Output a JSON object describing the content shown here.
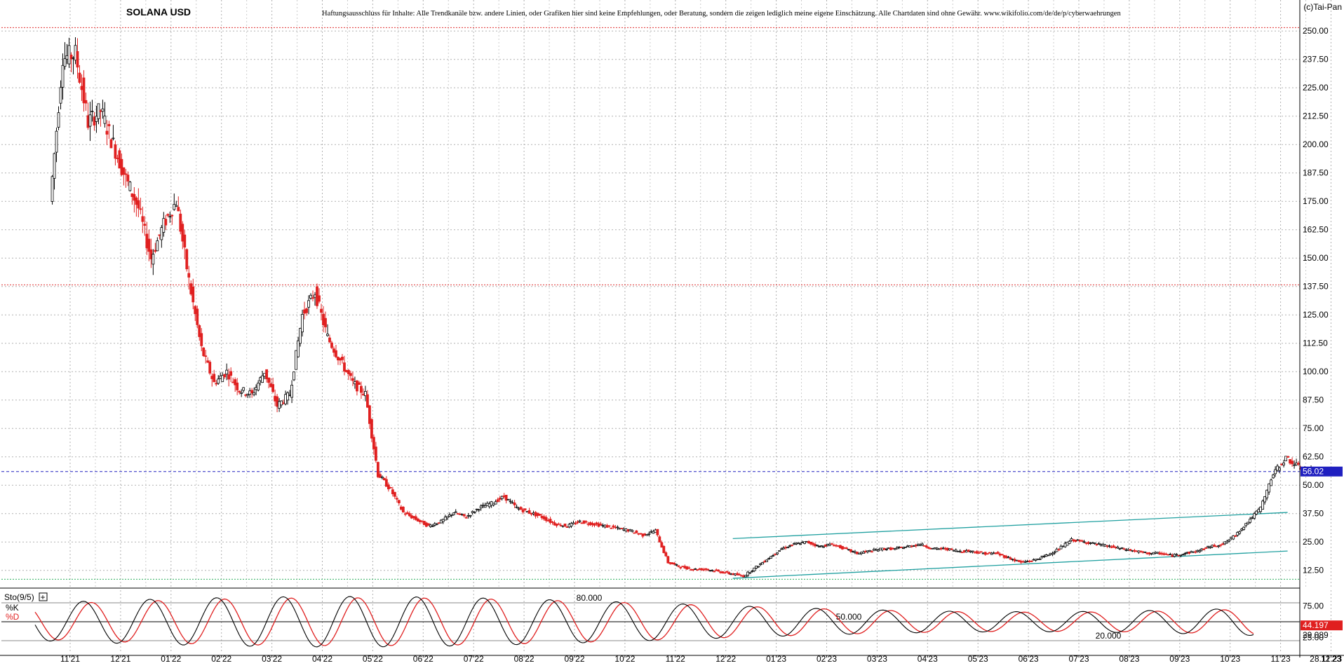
{
  "chart_data": [
    {
      "type": "candlestick",
      "title": "SOLANA USD",
      "disclaimer": "Haftungsausschluss für Inhalte: Alle Trendkanäle bzw. andere Linien, oder Grafiken hier sind keine Empfehlungen, oder Beratung, sondern die zeigen lediglich meine eigene Einschätzung. Alle Chartdaten sind ohne Gewähr.  www.wikifolio.com/de/de/p/cyberwaehrungen",
      "copyright": "(c)Tai-Pan",
      "y_ticks": [
        "250.00",
        "237.50",
        "225.00",
        "212.50",
        "200.00",
        "187.50",
        "175.00",
        "162.50",
        "150.00",
        "137.50",
        "125.00",
        "112.50",
        "100.00",
        "87.50",
        "75.00",
        "62.50",
        "50.00",
        "37.50",
        "25.00",
        "12.50"
      ],
      "ylim": [
        5.0,
        255.0
      ],
      "x_labels": [
        "11'21",
        "12'21",
        "01'22",
        "02'22",
        "03'22",
        "04'22",
        "05'22",
        "06'22",
        "07'22",
        "08'22",
        "09'22",
        "10'22",
        "11'22",
        "12'22",
        "01'23",
        "02'23",
        "03'23",
        "04'23",
        "05'23",
        "06'23",
        "07'23",
        "08'23",
        "09'23",
        "10'23",
        "11'23",
        "12'23",
        "28.11.23"
      ],
      "last_price": "56.02",
      "reference_lines": [
        {
          "value": 251.5,
          "color": "#e03030",
          "style": "dotted"
        },
        {
          "value": 138.2,
          "color": "#e03030",
          "style": "dotted"
        },
        {
          "value": 56.02,
          "color": "#2020c0",
          "style": "dashed"
        },
        {
          "value": 8.6,
          "color": "#30b060",
          "style": "dotted"
        }
      ],
      "trend_channel": {
        "color": "#20a0a0",
        "upper": {
          "from": [
            "12'22",
            26.5
          ],
          "to": [
            "11'23",
            38.0
          ]
        },
        "lower": {
          "from": [
            "12'22",
            9.0
          ],
          "to": [
            "11'23",
            21.0
          ]
        }
      },
      "series": [
        {
          "label": "price",
          "monthly_path": [
            [
              "11'21",
              175
            ],
            [
              "11'21",
              238
            ],
            [
              "11'21",
              240
            ],
            [
              "11'21",
              210
            ],
            [
              "12'21",
              215
            ],
            [
              "12'21",
              200
            ],
            [
              "12'21",
              185
            ],
            [
              "12'21",
              172
            ],
            [
              "01'22",
              150
            ],
            [
              "01'22",
              165
            ],
            [
              "01'22",
              175
            ],
            [
              "01'22",
              140
            ],
            [
              "02'22",
              110
            ],
            [
              "02'22",
              95
            ],
            [
              "02'22",
              100
            ],
            [
              "02'22",
              92
            ],
            [
              "03'22",
              90
            ],
            [
              "03'22",
              100
            ],
            [
              "03'22",
              85
            ],
            [
              "03'22",
              90
            ],
            [
              "04'22",
              125
            ],
            [
              "04'22",
              135
            ],
            [
              "04'22",
              115
            ],
            [
              "04'22",
              105
            ],
            [
              "05'22",
              95
            ],
            [
              "05'22",
              90
            ],
            [
              "05'22",
              55
            ],
            [
              "05'22",
              48
            ],
            [
              "06'22",
              38
            ],
            [
              "06'22",
              35
            ],
            [
              "06'22",
              32
            ],
            [
              "06'22",
              34
            ],
            [
              "07'22",
              38
            ],
            [
              "07'22",
              36
            ],
            [
              "07'22",
              40
            ],
            [
              "07'22",
              42
            ],
            [
              "08'22",
              45
            ],
            [
              "08'22",
              40
            ],
            [
              "08'22",
              38
            ],
            [
              "08'22",
              36
            ],
            [
              "09'22",
              33
            ],
            [
              "09'22",
              32
            ],
            [
              "09'22",
              34
            ],
            [
              "09'22",
              33
            ],
            [
              "10'22",
              32
            ],
            [
              "10'22",
              31
            ],
            [
              "10'22",
              30
            ],
            [
              "10'22",
              28
            ],
            [
              "11'22",
              30
            ],
            [
              "11'22",
              16
            ],
            [
              "11'22",
              14
            ],
            [
              "11'22",
              13
            ],
            [
              "12'22",
              13
            ],
            [
              "12'22",
              12
            ],
            [
              "12'22",
              11
            ],
            [
              "12'22",
              10
            ],
            [
              "01'23",
              14
            ],
            [
              "01'23",
              18
            ],
            [
              "01'23",
              22
            ],
            [
              "01'23",
              24
            ],
            [
              "02'23",
              25
            ],
            [
              "02'23",
              23
            ],
            [
              "02'23",
              24
            ],
            [
              "02'23",
              22
            ],
            [
              "03'23",
              20
            ],
            [
              "03'23",
              21
            ],
            [
              "03'23",
              22
            ],
            [
              "03'23",
              22
            ],
            [
              "04'23",
              23
            ],
            [
              "04'23",
              24
            ],
            [
              "04'23",
              22
            ],
            [
              "04'23",
              22
            ],
            [
              "05'23",
              21
            ],
            [
              "05'23",
              21
            ],
            [
              "05'23",
              20
            ],
            [
              "05'23",
              20
            ],
            [
              "06'23",
              18
            ],
            [
              "06'23",
              16
            ],
            [
              "06'23",
              17
            ],
            [
              "06'23",
              19
            ],
            [
              "07'23",
              22
            ],
            [
              "07'23",
              26
            ],
            [
              "07'23",
              25
            ],
            [
              "07'23",
              24
            ],
            [
              "08'23",
              23
            ],
            [
              "08'23",
              22
            ],
            [
              "08'23",
              21
            ],
            [
              "08'23",
              20
            ],
            [
              "09'23",
              20
            ],
            [
              "09'23",
              19
            ],
            [
              "09'23",
              20
            ],
            [
              "09'23",
              21
            ],
            [
              "10'23",
              23
            ],
            [
              "10'23",
              24
            ],
            [
              "10'23",
              28
            ],
            [
              "10'23",
              34
            ],
            [
              "11'23",
              40
            ],
            [
              "11'23",
              55
            ],
            [
              "11'23",
              62
            ],
            [
              "11'23",
              58
            ],
            [
              "12'23",
              56
            ]
          ]
        }
      ]
    },
    {
      "type": "line",
      "title": "Sto(9/5)",
      "legend": [
        "%K",
        "%D"
      ],
      "series_colors": [
        "#000000",
        "#e02020"
      ],
      "y_ticks": [
        "75.00",
        "25.00"
      ],
      "ylim": [
        0,
        100
      ],
      "level_labels": [
        "80.000",
        "50.000",
        "20.000"
      ],
      "levels": [
        80,
        50,
        20
      ],
      "last_values": [
        {
          "label": "44.197",
          "color": "#e02020"
        },
        {
          "label": "29.089",
          "color": "#000000"
        }
      ],
      "k_period_sessions": 9
    }
  ]
}
